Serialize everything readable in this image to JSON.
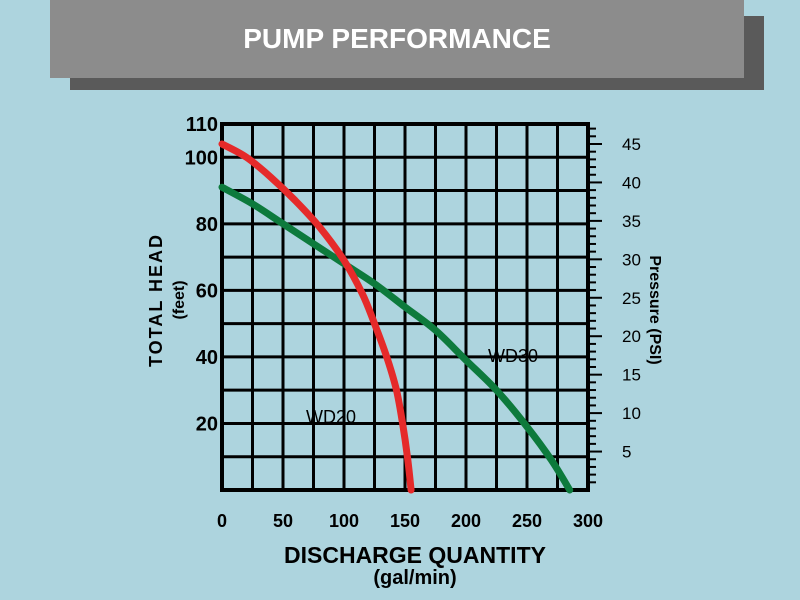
{
  "colors": {
    "background": "#add4de",
    "banner_back": "#5a5a5a",
    "banner_front": "#8c8c8c",
    "wd20": "#e52a2a",
    "wd30": "#0d7a3c",
    "grid": "#000000"
  },
  "chart_data": {
    "type": "line",
    "title": "PUMP PERFORMANCE",
    "xlabel": "DISCHARGE QUANTITY",
    "xlabel_unit": "(gal/min)",
    "ylabel": "TOTAL HEAD",
    "ylabel_unit": "(feet)",
    "y2label": "Pressure (PSI)",
    "xlim": [
      0,
      300
    ],
    "ylim": [
      0,
      110
    ],
    "y2lim": [
      0,
      47.6
    ],
    "x_ticks": [
      "0",
      "50",
      "100",
      "150",
      "200",
      "250",
      "300"
    ],
    "y_ticks": [
      "20",
      "40",
      "60",
      "80",
      "100",
      "110"
    ],
    "y2_ticks": [
      "5",
      "10",
      "15",
      "20",
      "25",
      "30",
      "35",
      "40",
      "45"
    ],
    "grid": true,
    "series": [
      {
        "name": "WD20",
        "color": "#e52a2a",
        "points": [
          [
            0,
            104
          ],
          [
            20,
            100
          ],
          [
            40,
            94
          ],
          [
            60,
            87
          ],
          [
            80,
            79
          ],
          [
            100,
            69
          ],
          [
            115,
            59
          ],
          [
            125,
            50
          ],
          [
            135,
            40
          ],
          [
            143,
            30
          ],
          [
            148,
            20
          ],
          [
            152,
            10
          ],
          [
            155,
            0
          ]
        ]
      },
      {
        "name": "WD30",
        "color": "#0d7a3c",
        "points": [
          [
            0,
            91
          ],
          [
            25,
            86
          ],
          [
            50,
            80
          ],
          [
            75,
            74
          ],
          [
            100,
            68
          ],
          [
            125,
            62
          ],
          [
            150,
            55
          ],
          [
            175,
            48
          ],
          [
            200,
            39
          ],
          [
            225,
            30
          ],
          [
            250,
            19
          ],
          [
            270,
            9
          ],
          [
            285,
            0
          ]
        ]
      }
    ]
  }
}
